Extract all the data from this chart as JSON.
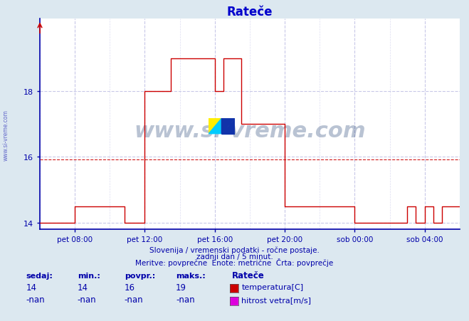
{
  "title": "Rateče",
  "subtitle1": "Slovenija / vremenski podatki - ročne postaje.",
  "subtitle2": "zadnji dan / 5 minut.",
  "subtitle3": "Meritve: povprečne  Enote: metrične  Črta: povprečje",
  "xlim": [
    0,
    288
  ],
  "ylim": [
    13.8,
    20.2
  ],
  "ytick_positions": [
    14,
    16,
    18
  ],
  "ytick_labels": [
    "14",
    "16",
    "18"
  ],
  "xtick_positions": [
    24,
    72,
    120,
    168,
    216,
    264
  ],
  "xtick_labels": [
    "pet 08:00",
    "pet 12:00",
    "pet 16:00",
    "pet 20:00",
    "sob 00:00",
    "sob 04:00"
  ],
  "avg_value": 15.93,
  "bg_color": "#dce8f0",
  "plot_bg_color": "#ffffff",
  "grid_color": "#c8c8e8",
  "line_color": "#cc0000",
  "axis_color": "#0000aa",
  "title_color": "#0000cc",
  "watermark_color": "#1a3a6e",
  "legend_items": [
    {
      "label": "temperatura[C]",
      "color": "#cc0000"
    },
    {
      "label": "hitrost vetra[m/s]",
      "color": "#dd00dd"
    }
  ],
  "stats": {
    "sedaj": "14",
    "min": "14",
    "povpr": "16",
    "maks": "19"
  },
  "temp_times": [
    0,
    24,
    24,
    58,
    58,
    72,
    72,
    90,
    90,
    120,
    120,
    126,
    126,
    138,
    138,
    150,
    150,
    168,
    168,
    216,
    216,
    252,
    252,
    258,
    258,
    264,
    264,
    270,
    270,
    276,
    276,
    288
  ],
  "temp_values": [
    14,
    14,
    14.5,
    14.5,
    14,
    14,
    18,
    18,
    19,
    19,
    18,
    18,
    19,
    19,
    17,
    17,
    17,
    17,
    14.5,
    14.5,
    14,
    14,
    14.5,
    14.5,
    14,
    14,
    14.5,
    14.5,
    14,
    14,
    14.5,
    14.5
  ]
}
